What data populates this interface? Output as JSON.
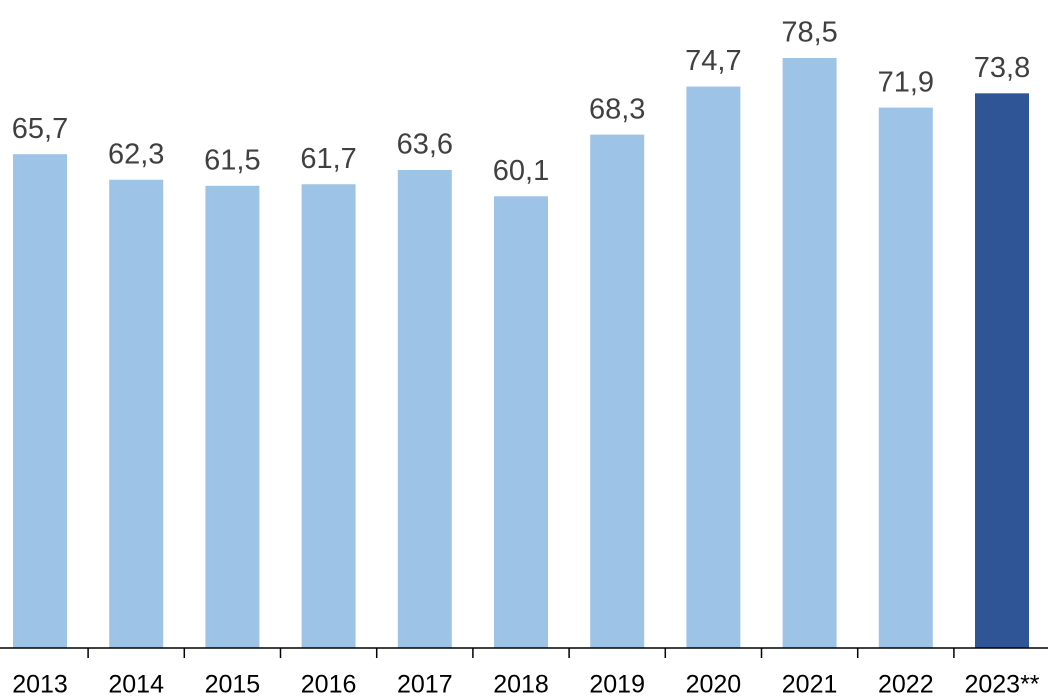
{
  "chart_data": {
    "type": "bar",
    "categories": [
      "2013",
      "2014",
      "2015",
      "2016",
      "2017",
      "2018",
      "2019",
      "2020",
      "2021",
      "2022",
      "2023**"
    ],
    "values": [
      65.7,
      62.3,
      61.5,
      61.7,
      63.6,
      60.1,
      68.3,
      74.7,
      78.5,
      71.9,
      73.8
    ],
    "value_labels": [
      "65,7",
      "62,3",
      "61,5",
      "61,7",
      "63,6",
      "60,1",
      "68,3",
      "74,7",
      "78,5",
      "71,9",
      "73,8"
    ],
    "colors": [
      "#9dc3e6",
      "#9dc3e6",
      "#9dc3e6",
      "#9dc3e6",
      "#9dc3e6",
      "#9dc3e6",
      "#9dc3e6",
      "#9dc3e6",
      "#9dc3e6",
      "#9dc3e6",
      "#2f5597"
    ]
  }
}
